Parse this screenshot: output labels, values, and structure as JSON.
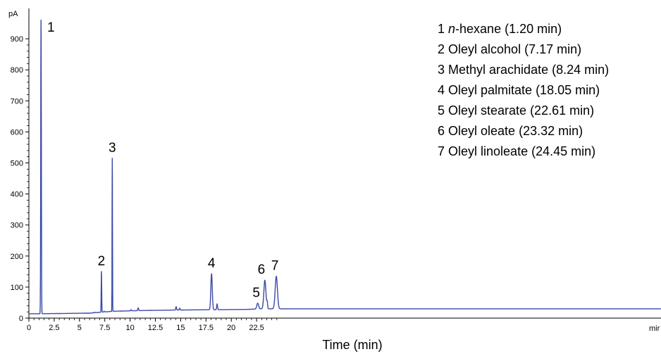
{
  "chart_data": {
    "type": "line",
    "xlabel": "Time (min)",
    "ylabel_unit": "pA",
    "x_unit_label": "mir",
    "xlim": [
      0,
      25
    ],
    "ylim": [
      0,
      960
    ],
    "x_ticks": [
      0,
      2.5,
      5,
      7.5,
      10,
      12.5,
      15,
      17.5,
      20,
      22.5
    ],
    "x_tick_labels": [
      "0",
      "2.5",
      "5",
      "7.5",
      "10",
      "12.5",
      "15",
      "17.5",
      "20",
      "22.5"
    ],
    "y_ticks": [
      0,
      100,
      200,
      300,
      400,
      500,
      600,
      700,
      800,
      900
    ],
    "y_tick_labels": [
      "0",
      "100",
      "200",
      "300",
      "400",
      "500",
      "600",
      "700",
      "800",
      "900"
    ],
    "line_color": "#3b4aa8",
    "baseline": {
      "x": [
        0,
        1.1,
        6,
        8.3,
        12,
        17.5,
        21.5,
        23,
        25
      ],
      "y": [
        14,
        14,
        16,
        22,
        25,
        27,
        28,
        30,
        30
      ]
    },
    "peaks": [
      {
        "label": "1",
        "name": "n-hexane",
        "time": 1.2,
        "height": 960,
        "width": 0.03
      },
      {
        "label": "2",
        "name": "Oleyl alcohol",
        "time": 7.17,
        "height": 150,
        "width": 0.025
      },
      {
        "label": "3",
        "name": "Methyl arachidate",
        "time": 8.24,
        "height": 515,
        "width": 0.02
      },
      {
        "label": "4",
        "name": "Oleyl palmitate",
        "time": 18.05,
        "height": 143,
        "width": 0.07
      },
      {
        "label": "5",
        "name": "Oleyl stearate",
        "time": 22.61,
        "height": 48,
        "width": 0.09
      },
      {
        "label": "6",
        "name": "Oleyl oleate",
        "time": 23.32,
        "height": 122,
        "width": 0.1
      },
      {
        "label": "7",
        "name": "Oleyl linoleate",
        "time": 24.45,
        "height": 135,
        "width": 0.11
      }
    ],
    "minor_peaks": [
      {
        "time": 6.5,
        "height": 19
      },
      {
        "time": 7.45,
        "height": 22
      },
      {
        "time": 10.1,
        "height": 27
      },
      {
        "time": 10.8,
        "height": 33
      },
      {
        "time": 14.55,
        "height": 37
      },
      {
        "time": 14.9,
        "height": 32
      },
      {
        "time": 18.6,
        "height": 46
      },
      {
        "time": 23.55,
        "height": 50
      }
    ],
    "legend": [
      {
        "num": "1",
        "italic": "n",
        "rest": "-hexane (1.20 min)"
      },
      {
        "num": "2",
        "italic": "",
        "rest": "Oleyl alcohol (7.17 min)"
      },
      {
        "num": "3",
        "italic": "",
        "rest": "Methyl arachidate (8.24 min)"
      },
      {
        "num": "4",
        "italic": "",
        "rest": "Oleyl palmitate (18.05 min)"
      },
      {
        "num": "5",
        "italic": "",
        "rest": "Oleyl stearate (22.61 min)"
      },
      {
        "num": "6",
        "italic": "",
        "rest": "Oleyl oleate (23.32 min)"
      },
      {
        "num": "7",
        "italic": "",
        "rest": "Oleyl linoleate (24.45 min)"
      }
    ],
    "legend_position": "top-right",
    "grid": false
  }
}
